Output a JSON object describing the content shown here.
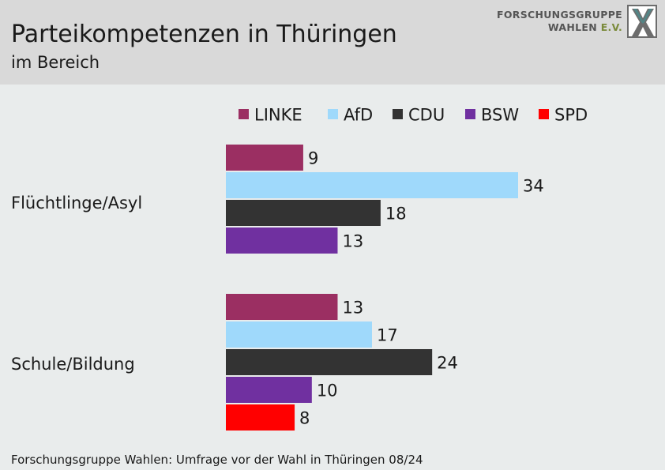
{
  "header": {
    "title": "Parteikompetenzen in Thüringen",
    "subtitle": "im Bereich"
  },
  "logo": {
    "line1": "FORSCHUNGSGRUPPE",
    "line2": "WAHLEN",
    "line2_suffix": "E.V."
  },
  "footer": {
    "source": "Forschungsgruppe Wahlen: Umfrage vor der Wahl in Thüringen 08/24"
  },
  "chart_data": {
    "type": "bar",
    "orientation": "horizontal",
    "title": "Parteikompetenzen in Thüringen",
    "subtitle": "im Bereich",
    "legend_position": "top",
    "grid": false,
    "categories": [
      "Flüchtlinge/Asyl",
      "Schule/Bildung"
    ],
    "series": [
      {
        "name": "LINKE",
        "color": "#9b2f62",
        "values": [
          9,
          13
        ]
      },
      {
        "name": "AfD",
        "color": "#9fd9fb",
        "values": [
          34,
          17
        ]
      },
      {
        "name": "CDU",
        "color": "#333333",
        "values": [
          18,
          24
        ]
      },
      {
        "name": "BSW",
        "color": "#7030a0",
        "values": [
          13,
          10
        ]
      },
      {
        "name": "SPD",
        "color": "#ff0000",
        "values": [
          null,
          8
        ]
      }
    ]
  }
}
